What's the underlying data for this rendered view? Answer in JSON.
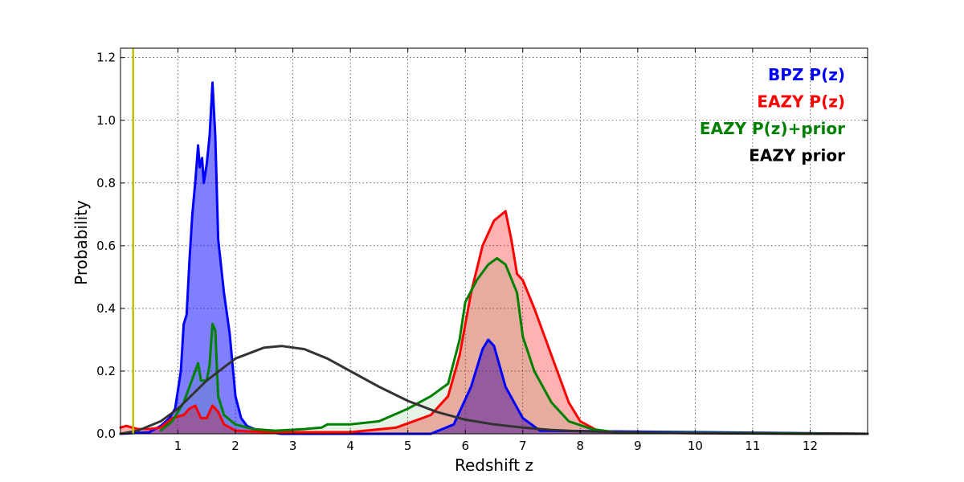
{
  "chart_data": {
    "type": "line",
    "title": "",
    "xlabel": "Redshift z",
    "ylabel": "Probability",
    "xlim": [
      0,
      13
    ],
    "ylim": [
      0,
      1.23
    ],
    "xticks": [
      1,
      2,
      3,
      4,
      5,
      6,
      7,
      8,
      9,
      10,
      11,
      12
    ],
    "xtick_labels": [
      "1",
      "2",
      "3",
      "4",
      "5",
      "6",
      "7",
      "8",
      "9",
      "10",
      "11",
      "12"
    ],
    "yticks": [
      0.0,
      0.2,
      0.4,
      0.6,
      0.8,
      1.0,
      1.2
    ],
    "ytick_labels": [
      "0.0",
      "0.2",
      "0.4",
      "0.6",
      "0.8",
      "1.0",
      "1.2"
    ],
    "grid": true,
    "legend_position": "top-right",
    "vline": {
      "x": 0.22,
      "color": "#bfbf00"
    },
    "series": [
      {
        "name": "BPZ P(z)",
        "color": "#0000ff",
        "fill": "#0000ff",
        "fill_opacity": 0.5,
        "x": [
          0,
          0.5,
          0.7,
          0.85,
          0.95,
          1.05,
          1.1,
          1.15,
          1.2,
          1.25,
          1.3,
          1.35,
          1.38,
          1.42,
          1.45,
          1.5,
          1.55,
          1.6,
          1.65,
          1.7,
          1.8,
          1.9,
          2.0,
          2.1,
          2.2,
          2.4,
          2.8,
          5.4,
          5.8,
          6.1,
          6.3,
          6.4,
          6.5,
          6.7,
          7.0,
          7.3,
          13
        ],
        "y": [
          0.0,
          0.005,
          0.025,
          0.05,
          0.08,
          0.2,
          0.35,
          0.38,
          0.55,
          0.7,
          0.8,
          0.92,
          0.85,
          0.88,
          0.8,
          0.86,
          0.95,
          1.12,
          0.95,
          0.62,
          0.45,
          0.32,
          0.12,
          0.05,
          0.025,
          0.01,
          0.0,
          0.0,
          0.03,
          0.15,
          0.27,
          0.3,
          0.28,
          0.15,
          0.05,
          0.01,
          0.0
        ]
      },
      {
        "name": "EAZY P(z)",
        "color": "#ff0000",
        "fill": "#ff0000",
        "fill_opacity": 0.3,
        "x": [
          0,
          0.1,
          0.2,
          0.3,
          0.5,
          0.7,
          0.9,
          1.1,
          1.2,
          1.3,
          1.4,
          1.5,
          1.6,
          1.7,
          1.8,
          2.0,
          2.5,
          4.0,
          4.8,
          5.4,
          5.7,
          5.9,
          6.1,
          6.3,
          6.5,
          6.7,
          6.8,
          6.9,
          7.0,
          7.2,
          7.5,
          7.8,
          8.0,
          8.3,
          8.7,
          13
        ],
        "y": [
          0.02,
          0.025,
          0.02,
          0.015,
          0.015,
          0.02,
          0.05,
          0.06,
          0.08,
          0.09,
          0.05,
          0.05,
          0.09,
          0.07,
          0.03,
          0.01,
          0.005,
          0.005,
          0.02,
          0.06,
          0.12,
          0.25,
          0.45,
          0.6,
          0.68,
          0.71,
          0.62,
          0.51,
          0.49,
          0.4,
          0.25,
          0.1,
          0.04,
          0.01,
          0.003,
          0.0
        ]
      },
      {
        "name": "EAZY P(z)+prior",
        "color": "#008000",
        "fill": "#008000",
        "fill_opacity": 0.1,
        "x": [
          0.7,
          0.9,
          1.1,
          1.3,
          1.35,
          1.4,
          1.5,
          1.55,
          1.6,
          1.65,
          1.7,
          1.8,
          2.0,
          2.3,
          2.7,
          3.2,
          3.5,
          3.6,
          4.0,
          4.5,
          5.0,
          5.4,
          5.7,
          5.9,
          6.0,
          6.2,
          6.4,
          6.55,
          6.7,
          6.9,
          7.0,
          7.2,
          7.5,
          7.8,
          8.2,
          8.6,
          13
        ],
        "y": [
          0.01,
          0.04,
          0.1,
          0.2,
          0.225,
          0.17,
          0.17,
          0.22,
          0.35,
          0.33,
          0.12,
          0.06,
          0.03,
          0.015,
          0.01,
          0.015,
          0.02,
          0.03,
          0.03,
          0.04,
          0.08,
          0.12,
          0.16,
          0.3,
          0.42,
          0.49,
          0.54,
          0.56,
          0.54,
          0.45,
          0.31,
          0.2,
          0.1,
          0.04,
          0.015,
          0.005,
          0.0
        ]
      },
      {
        "name": "EAZY prior",
        "color": "#333333",
        "fill": null,
        "fill_opacity": 0,
        "x": [
          0,
          0.3,
          0.7,
          1.0,
          1.5,
          2.0,
          2.5,
          2.8,
          3.2,
          3.6,
          4.0,
          4.5,
          5.0,
          5.5,
          6.0,
          6.5,
          7.0,
          7.5,
          8.0,
          9.0,
          10.0,
          11.0,
          12.0,
          13.0
        ],
        "y": [
          0.0,
          0.01,
          0.04,
          0.08,
          0.17,
          0.24,
          0.275,
          0.28,
          0.27,
          0.24,
          0.2,
          0.15,
          0.105,
          0.07,
          0.045,
          0.03,
          0.02,
          0.012,
          0.008,
          0.004,
          0.002,
          0.001,
          0.0,
          0.0
        ]
      }
    ]
  }
}
